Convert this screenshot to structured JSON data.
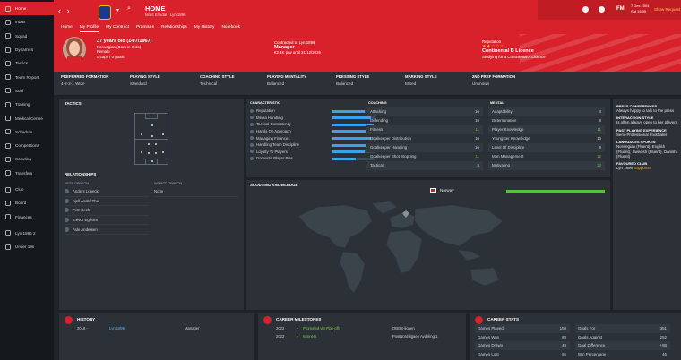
{
  "sidebar": {
    "items": [
      {
        "label": "Home",
        "icon": "home-icon",
        "active": true
      },
      {
        "label": "Inbox",
        "icon": "inbox-icon"
      },
      {
        "label": "Squad",
        "icon": "squad-icon"
      },
      {
        "label": "Dynamics",
        "icon": "dynamics-icon"
      },
      {
        "label": "Tactics",
        "icon": "tactics-icon"
      },
      {
        "label": "Team Report",
        "icon": "team-report-icon"
      },
      {
        "label": "Staff",
        "icon": "staff-icon"
      },
      {
        "label": "Training",
        "icon": "training-icon"
      },
      {
        "label": "Medical Centre",
        "icon": "medical-icon"
      },
      {
        "label": "Schedule",
        "icon": "schedule-icon"
      },
      {
        "label": "Competitions",
        "icon": "competitions-icon"
      },
      {
        "label": "Scouting",
        "icon": "scouting-icon"
      },
      {
        "label": "Transfers",
        "icon": "transfers-icon"
      },
      {
        "label": "Club",
        "icon": "club-icon"
      },
      {
        "label": "Board",
        "icon": "board-icon"
      },
      {
        "label": "Finances",
        "icon": "finances-icon"
      },
      {
        "label": "Lyn 1896 2",
        "icon": "lyn-2-icon"
      },
      {
        "label": "Under 19s",
        "icon": "under-19s-icon"
      }
    ]
  },
  "header": {
    "title": "HOME",
    "subtitle": "Morit Ereidal - Lyn 1896",
    "fm": "FM",
    "date_line1": "7 Dec 2004",
    "date_line2": "Sat 15:35",
    "continue": "Show Request"
  },
  "tabs": [
    "Home",
    "My Profile",
    "My Contract",
    "Promises",
    "Relationships",
    "My History",
    "Notebook"
  ],
  "profile": {
    "age": "37 years old (14/7/1967)",
    "nation": "Norwegian (Born in Oslo)",
    "gender": "Female",
    "caps": "0 caps / 0 goals",
    "contract_lab": "Contracted to Lyn 1896",
    "role": "Manager",
    "wage": "€2.4K p/w until 31/12/2026",
    "rep_lab": "Reputation",
    "stars": "★★☆☆☆",
    "licence": "Continental B Licence",
    "studying": "Studying for a Continental A Licence"
  },
  "info": [
    {
      "label": "PREFERRED FORMATION",
      "value": "4-2-3-1 Wide"
    },
    {
      "label": "PLAYING STYLE",
      "value": "Standard"
    },
    {
      "label": "COACHING STYLE",
      "value": "Technical"
    },
    {
      "label": "PLAYING MENTALITY",
      "value": "Balanced"
    },
    {
      "label": "PRESSING STYLE",
      "value": "Balanced"
    },
    {
      "label": "MARKING STYLE",
      "value": "Mixed"
    },
    {
      "label": "2ND PREF FORMATION",
      "value": "Unknown"
    }
  ],
  "tactics": {
    "title": "TACTICS"
  },
  "relationships": {
    "title": "RELATIONSHIPS",
    "best_lab": "BEST OPINION",
    "worst_lab": "WORST OPINION",
    "best": [
      "Anders Lübeck",
      "Kjell André Thu",
      "Petr Cech",
      "Trevor Egholm",
      "Asle Andersen"
    ],
    "worst": [
      "None"
    ]
  },
  "characteristic": {
    "title": "CHARACTERISTIC",
    "items": [
      {
        "label": "Reputation",
        "level": 0.75
      },
      {
        "label": "Media Handling",
        "level": 0.9
      },
      {
        "label": "Tactical Consistency",
        "level": 0.95
      },
      {
        "label": "Hands On Approach",
        "level": 0.9
      },
      {
        "label": "Managing Finances",
        "level": 0.9
      },
      {
        "label": "Handling Team Discipline",
        "level": 0.9
      },
      {
        "label": "Loyalty To Players",
        "level": 0.75
      },
      {
        "label": "Domestic Player Bias",
        "level": 0.55
      }
    ]
  },
  "coaching": {
    "title": "COACHING",
    "items": [
      {
        "label": "Attacking",
        "value": "10"
      },
      {
        "label": "Defending",
        "value": "10"
      },
      {
        "label": "Fitness",
        "value": "11",
        "green": true
      },
      {
        "label": "Goalkeeper Distribution",
        "value": "10"
      },
      {
        "label": "Goalkeeper Handling",
        "value": "10"
      },
      {
        "label": "Goalkeeper Shot Stopping",
        "value": "11",
        "green": true
      },
      {
        "label": "Tactical",
        "value": "8"
      }
    ]
  },
  "mental": {
    "title": "MENTAL",
    "items": [
      {
        "label": "Adaptability",
        "value": "4"
      },
      {
        "label": "Determination",
        "value": "8"
      },
      {
        "label": "Player Knowledge",
        "value": "11",
        "green": true
      },
      {
        "label": "Youngster Knowledge",
        "value": "10"
      },
      {
        "label": "Level Of Discipline",
        "value": "9"
      },
      {
        "label": "Man Management",
        "value": "12",
        "green": true
      },
      {
        "label": "Motivating",
        "value": "13",
        "green": true
      }
    ]
  },
  "scouting": {
    "title": "SCOUTING KNOWLEDGE",
    "country": "Norway",
    "level": 1.0
  },
  "press": {
    "press_lab": "PRESS CONFERENCES",
    "press_val": "Always happy to talk to the press",
    "interaction_lab": "INTERACTION STYLE",
    "interaction_val": "Is often always open to her players",
    "experience_lab": "PAST PLAYING EXPERIENCE",
    "experience_val": "Semi-Professional Footballer",
    "languages_lab": "LANGUAGES SPOKEN",
    "languages_val": "Norwegian (Fluent), English (Fluent), Swedish (Fluent), Danish (Fluent)",
    "favoured_lab": "FAVOURED CLUB",
    "favoured_club": "Lyn 1896",
    "favoured_role": "Supporter"
  },
  "history": {
    "title": "HISTORY",
    "year": "2018 - ",
    "club": "Lyn 1896",
    "role": "Manager"
  },
  "milestones": {
    "title": "CAREER MILESTONES",
    "items": [
      {
        "year": "2022",
        "text": "Promoted via Play-offs",
        "comp": "OBOS-ligaen"
      },
      {
        "year": "2022",
        "text": "Winners",
        "comp": "PostNord-ligaen Avdeling 1"
      }
    ]
  },
  "stats": {
    "title": "CAREER STATS",
    "left": [
      {
        "label": "Games Played",
        "value": "193"
      },
      {
        "label": "Games Won",
        "value": "89"
      },
      {
        "label": "Games Drawn",
        "value": "49"
      },
      {
        "label": "Games Lost",
        "value": "55"
      }
    ],
    "right": [
      {
        "label": "Goals For",
        "value": "351"
      },
      {
        "label": "Goals Against",
        "value": "252"
      },
      {
        "label": "Goal Difference",
        "value": "+99"
      },
      {
        "label": "Win Percentage",
        "value": "46"
      }
    ]
  }
}
